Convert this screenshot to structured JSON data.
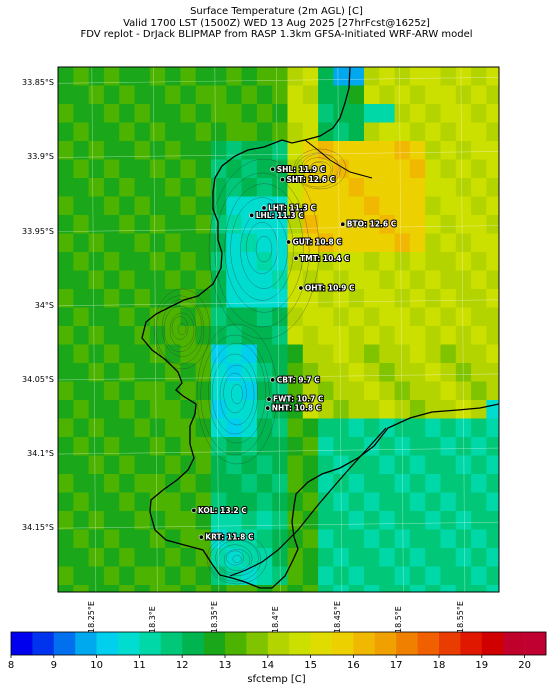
{
  "header": {
    "line1": "Surface Temperature (2m AGL) [C]",
    "line2": "Valid 1700 LST (1500Z) WED 13 Aug 2025 [27hrFcst@1625z]",
    "line3": "FDV replot - DrJack BLIPMAP from RASP 1.3km GFSA-Initiated WRF-ARW model"
  },
  "map": {
    "lat_labels": [
      "33.85°S",
      "33.9°S",
      "33.95°S",
      "34°S",
      "34.05°S",
      "34.1°S",
      "34.15°S"
    ],
    "lon_labels": [
      "18.25°E",
      "18.3°E",
      "18.35°E",
      "18.4°E",
      "18.45°E",
      "18.5°E",
      "18.55°E"
    ],
    "stations": [
      {
        "label": "SHL: 11.9 C",
        "lon": 18.397,
        "lat": -33.908
      },
      {
        "label": "SHT: 12.6 C",
        "lon": 18.405,
        "lat": -33.915
      },
      {
        "label": "LHT: 11.3 C",
        "lon": 18.39,
        "lat": -33.934
      },
      {
        "label": "LHL: 11.3 C",
        "lon": 18.38,
        "lat": -33.939
      },
      {
        "label": "BTO: 12.6 C",
        "lon": 18.454,
        "lat": -33.945
      },
      {
        "label": "GUT: 10.8 C",
        "lon": 18.41,
        "lat": -33.957
      },
      {
        "label": "TMT: 10.4 C",
        "lon": 18.416,
        "lat": -33.968
      },
      {
        "label": "OHT: 10.9 C",
        "lon": 18.42,
        "lat": -33.988
      },
      {
        "label": "CBT: 9.7 C",
        "lon": 18.397,
        "lat": -34.05
      },
      {
        "label": "FWT: 10.7 C",
        "lon": 18.394,
        "lat": -34.063
      },
      {
        "label": "NHT: 10.8 C",
        "lon": 18.393,
        "lat": -34.069
      },
      {
        "label": "KOL: 13.2 C",
        "lon": 18.333,
        "lat": -34.138
      },
      {
        "label": "KRT: 11.8 C",
        "lon": 18.339,
        "lat": -34.156
      }
    ]
  },
  "colorbar": {
    "label": "sfctemp [C]",
    "min": 8,
    "max": 20.5,
    "step": 0.5,
    "ticks": [
      "8",
      "9",
      "10",
      "11",
      "12",
      "13",
      "14",
      "15",
      "16",
      "17",
      "18",
      "19",
      "20"
    ],
    "colors": [
      "#0000ee",
      "#0033ee",
      "#0070ee",
      "#00a8ee",
      "#00d0ee",
      "#00dcd0",
      "#00d8a8",
      "#00c878",
      "#00b450",
      "#1aa81a",
      "#4cb400",
      "#80c400",
      "#b4d400",
      "#cce000",
      "#e0dc00",
      "#ecd000",
      "#f0b800",
      "#f0a000",
      "#f08000",
      "#f06000",
      "#e83c00",
      "#e01800",
      "#d00000",
      "#c0002a",
      "#c00030"
    ]
  }
}
